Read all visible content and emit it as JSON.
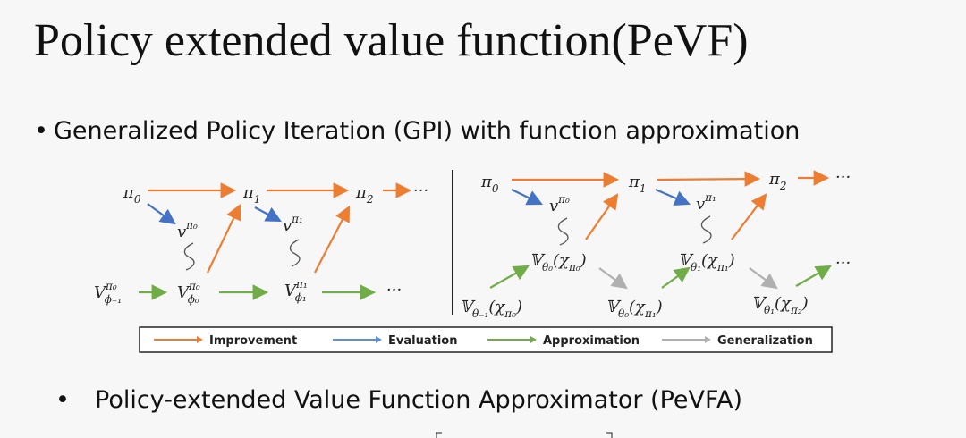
{
  "header": {
    "title": "Policy extended value function(PeVF)"
  },
  "bullets": [
    {
      "marker": "•",
      "text": "Generalized Policy Iteration (GPI) with function approximation"
    },
    {
      "marker": "•",
      "text": "Policy-extended Value Function Approximator (PeVFA)"
    }
  ],
  "diagram": {
    "nodes": [
      {
        "parts": [
          {
            "t": "π"
          },
          {
            "t": "0",
            "s": "sub"
          }
        ]
      },
      {
        "parts": [
          {
            "t": "π"
          },
          {
            "t": "1",
            "s": "sub"
          }
        ]
      },
      {
        "parts": [
          {
            "t": "π"
          },
          {
            "t": "2",
            "s": "sub"
          }
        ]
      },
      {
        "parts": [
          {
            "t": "···"
          }
        ]
      },
      {
        "parts": [
          {
            "t": "v"
          },
          {
            "t": "π₀",
            "s": "sup"
          }
        ]
      },
      {
        "parts": [
          {
            "t": "v"
          },
          {
            "t": "π₁",
            "s": "sup"
          }
        ]
      },
      {
        "parts": [
          {
            "t": "V"
          },
          {
            "t": "π₀",
            "s": "sup"
          },
          {
            "t": "ϕ₋₁",
            "s": "sub"
          }
        ]
      },
      {
        "parts": [
          {
            "t": "V"
          },
          {
            "t": "π₀",
            "s": "sup"
          },
          {
            "t": "ϕ₀",
            "s": "sub"
          }
        ]
      },
      {
        "parts": [
          {
            "t": "V"
          },
          {
            "t": "π₁",
            "s": "sup"
          },
          {
            "t": "ϕ₁",
            "s": "sub"
          }
        ]
      },
      {
        "parts": [
          {
            "t": "···"
          }
        ]
      },
      {
        "parts": [
          {
            "t": "π"
          },
          {
            "t": "0",
            "s": "sub"
          }
        ]
      },
      {
        "parts": [
          {
            "t": "π"
          },
          {
            "t": "1",
            "s": "sub"
          }
        ]
      },
      {
        "parts": [
          {
            "t": "π"
          },
          {
            "t": "2",
            "s": "sub"
          }
        ]
      },
      {
        "parts": [
          {
            "t": "···"
          }
        ]
      },
      {
        "parts": [
          {
            "t": "v"
          },
          {
            "t": "π₀",
            "s": "sup"
          }
        ]
      },
      {
        "parts": [
          {
            "t": "v"
          },
          {
            "t": "π₁",
            "s": "sup"
          }
        ]
      },
      {
        "parts": [
          {
            "t": "𝕍"
          },
          {
            "t": "θ₀",
            "s": "sub"
          },
          {
            "t": "(χ"
          },
          {
            "t": "π₀",
            "s": "sub"
          },
          {
            "t": ")"
          }
        ]
      },
      {
        "parts": [
          {
            "t": "𝕍"
          },
          {
            "t": "θ₁",
            "s": "sub"
          },
          {
            "t": "(χ"
          },
          {
            "t": "π₁",
            "s": "sub"
          },
          {
            "t": ")"
          }
        ]
      },
      {
        "parts": [
          {
            "t": "𝕍"
          },
          {
            "t": "θ₋₁",
            "s": "sub"
          },
          {
            "t": "(χ"
          },
          {
            "t": "π₀",
            "s": "sub"
          },
          {
            "t": ")"
          }
        ]
      },
      {
        "parts": [
          {
            "t": "𝕍"
          },
          {
            "t": "θ₀",
            "s": "sub"
          },
          {
            "t": "(χ"
          },
          {
            "t": "π₁",
            "s": "sub"
          },
          {
            "t": ")"
          }
        ]
      },
      {
        "parts": [
          {
            "t": "𝕍"
          },
          {
            "t": "θ₁",
            "s": "sub"
          },
          {
            "t": "(χ"
          },
          {
            "t": "π₂",
            "s": "sub"
          },
          {
            "t": ")"
          }
        ]
      },
      {
        "parts": [
          {
            "t": "···"
          }
        ]
      }
    ],
    "legend": [
      {
        "label": "Improvement",
        "color": "#ed7d31"
      },
      {
        "label": "Evaluation",
        "color": "#5b8fd6"
      },
      {
        "label": "Approximation",
        "color": "#70ad47"
      },
      {
        "label": "Generalization",
        "color": "#b0b0b0"
      }
    ]
  }
}
